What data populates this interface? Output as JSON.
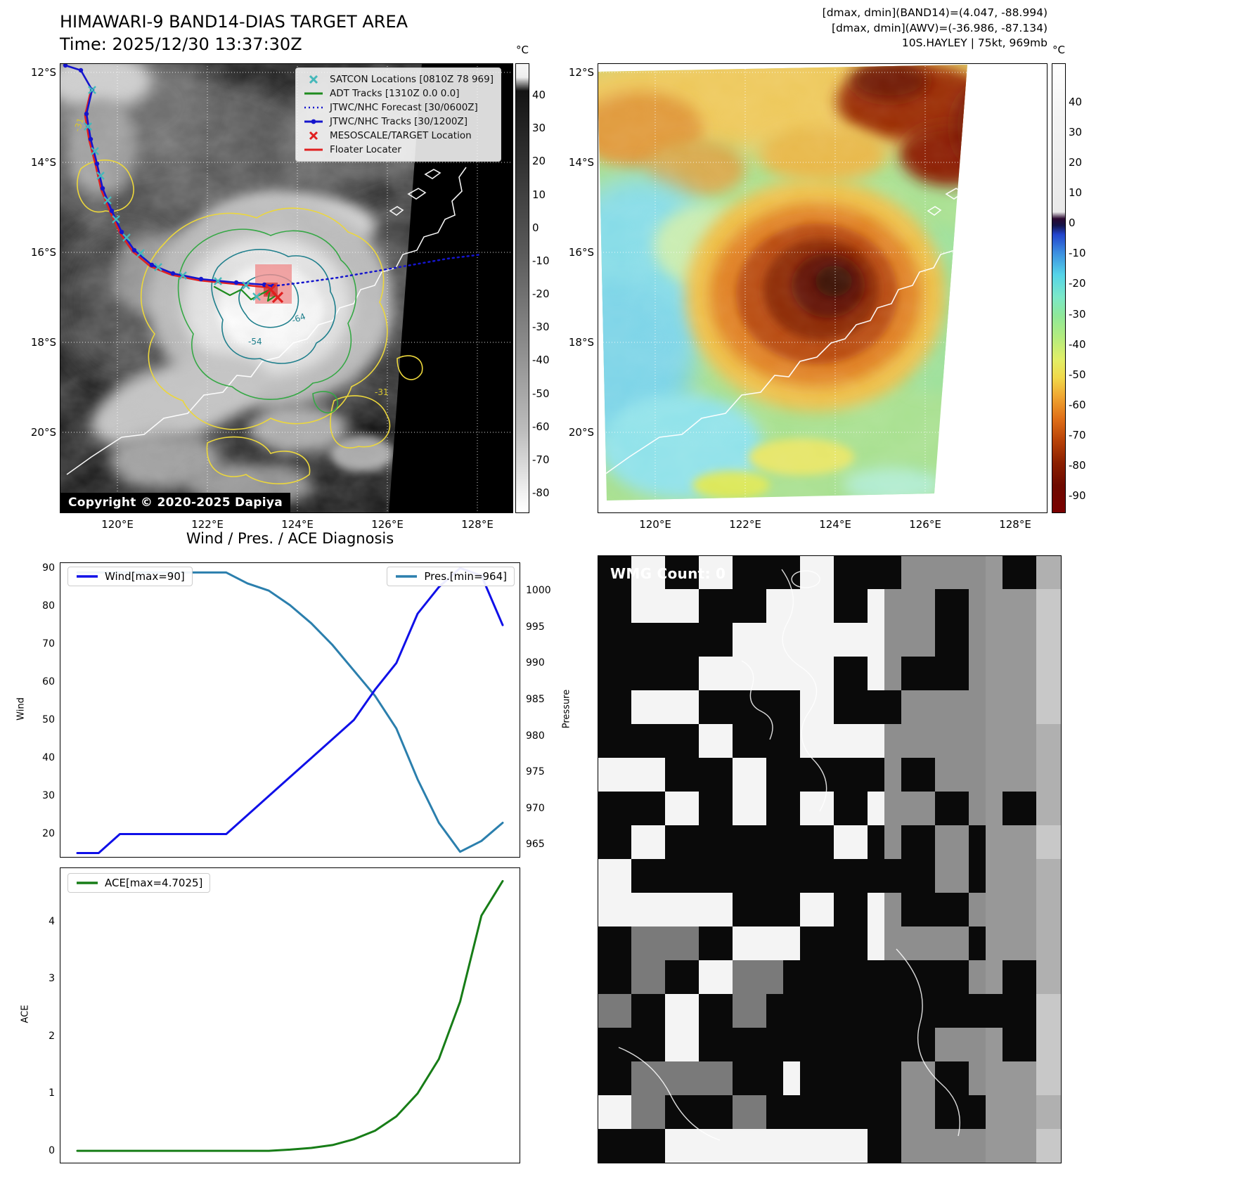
{
  "band14_panel": {
    "title": "HIMAWARI-9 BAND14-DIAS TARGET AREA",
    "time_label": "Time: 2025/12/30 13:37:30Z",
    "copyright": "Copyright © 2020-2025 Dapiya",
    "legend": [
      {
        "label": "SATCON Locations [0810Z 78 969]",
        "marker": "x",
        "color": "#45b8ba"
      },
      {
        "label": "ADT Tracks [1310Z 0.0 0.0]",
        "marker": "line",
        "color": "#1f8c1f"
      },
      {
        "label": "JTWC/NHC Forecast [30/0600Z]",
        "marker": "dotted",
        "color": "#1515cd"
      },
      {
        "label": "JTWC/NHC Tracks [30/1200Z]",
        "marker": "line-dot",
        "color": "#1515cd"
      },
      {
        "label": "MESOSCALE/TARGET Location",
        "marker": "x",
        "color": "#e02020"
      },
      {
        "label": "Floater Locater",
        "marker": "line",
        "color": "#e02020"
      }
    ],
    "lat_ticks": [
      "12°S",
      "14°S",
      "16°S",
      "18°S",
      "20°S"
    ],
    "lon_ticks": [
      "120°E",
      "122°E",
      "124°E",
      "126°E",
      "128°E"
    ],
    "colorbar_unit": "°C",
    "colorbar_ticks": [
      40,
      30,
      20,
      10,
      0,
      -10,
      -20,
      -30,
      -40,
      -50,
      -60,
      -70,
      -80
    ],
    "contour_labels": [
      {
        "text": "-31",
        "color": "#d8c62e"
      },
      {
        "text": "-54",
        "color": "#1f7f8c"
      },
      {
        "text": "-64",
        "color": "#1f7f8c"
      },
      {
        "text": "-31",
        "color": "#d8c62e"
      }
    ]
  },
  "awv_panel": {
    "annotations": [
      "[dmax, dmin](BAND14)=(4.047, -88.994)",
      "[dmax, dmin](AWV)=(-36.986, -87.134)",
      "10S.HAYLEY | 75kt, 969mb"
    ],
    "lat_ticks": [
      "12°S",
      "14°S",
      "16°S",
      "18°S",
      "20°S"
    ],
    "lon_ticks": [
      "120°E",
      "122°E",
      "124°E",
      "126°E",
      "128°E"
    ],
    "colorbar_unit": "°C",
    "colorbar_ticks": [
      40,
      30,
      20,
      10,
      0,
      -10,
      -20,
      -30,
      -40,
      -50,
      -60,
      -70,
      -80,
      -90
    ]
  },
  "wmg_panel": {
    "count_label": "WMG Count: 0"
  },
  "chart_data": [
    {
      "type": "line",
      "title": "Wind / Pres. / ACE Diagnosis",
      "x": [
        0,
        1,
        2,
        3,
        4,
        5,
        6,
        7,
        8,
        9,
        10,
        11,
        12,
        13,
        14,
        15,
        16,
        17,
        18,
        19,
        20
      ],
      "series": [
        {
          "name": "Wind[max=90]",
          "axis": "left",
          "color": "#1010e8",
          "values": [
            15,
            15,
            20,
            20,
            20,
            20,
            20,
            20,
            25,
            30,
            35,
            40,
            45,
            50,
            58,
            65,
            78,
            85,
            90,
            88,
            75
          ]
        },
        {
          "name": "Pres.[min=964]",
          "axis": "right",
          "color": "#2b7fad",
          "values": [
            1002.5,
            1002.5,
            1002.5,
            1002.5,
            1002.5,
            1002.5,
            1002.5,
            1002.5,
            1001,
            1000,
            998,
            995.5,
            992.5,
            989,
            985.5,
            981,
            974,
            968,
            964,
            965.5,
            968
          ]
        }
      ],
      "left_axis": {
        "label": "Wind",
        "ticks": [
          20,
          30,
          40,
          50,
          60,
          70,
          80,
          90
        ],
        "range": [
          13.8,
          91.5
        ]
      },
      "right_axis": {
        "label": "Pressure",
        "ticks": [
          965,
          970,
          975,
          980,
          985,
          990,
          995,
          1000
        ],
        "range": [
          963.2,
          1003.9
        ]
      },
      "legend_position": "top",
      "grid": false
    },
    {
      "type": "line",
      "x": [
        0,
        1,
        2,
        3,
        4,
        5,
        6,
        7,
        8,
        9,
        10,
        11,
        12,
        13,
        14,
        15,
        16,
        17,
        18,
        19,
        20
      ],
      "series": [
        {
          "name": "ACE[max=4.7025]",
          "axis": "left",
          "color": "#177d17",
          "values": [
            0,
            0,
            0,
            0,
            0,
            0,
            0,
            0,
            0,
            0,
            0.02,
            0.05,
            0.1,
            0.2,
            0.35,
            0.6,
            1.0,
            1.6,
            2.6,
            4.1,
            4.7025
          ]
        }
      ],
      "left_axis": {
        "label": "ACE",
        "ticks": [
          0,
          1,
          2,
          3,
          4
        ],
        "range": [
          -0.22,
          4.94
        ]
      },
      "legend_position": "top-left",
      "grid": false
    }
  ]
}
